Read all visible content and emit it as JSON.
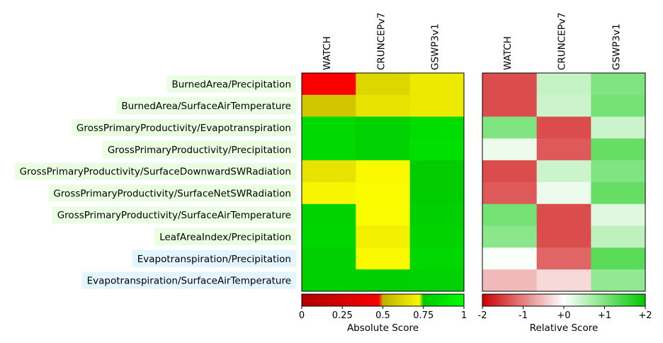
{
  "chart_data": [
    {
      "type": "heatmap",
      "title": "",
      "columns": [
        "WATCH",
        "CRUNCEPv7",
        "GSWP3v1"
      ],
      "rows": [
        "BurnedArea/Precipitation",
        "BurnedArea/SurfaceAirTemperature",
        "GrossPrimaryProductivity/Evapotranspiration",
        "GrossPrimaryProductivity/Precipitation",
        "GrossPrimaryProductivity/SurfaceDownwardSWRadiation",
        "GrossPrimaryProductivity/SurfaceNetSWRadiation",
        "GrossPrimaryProductivity/SurfaceAirTemperature",
        "LeafAreaIndex/Precipitation",
        "Evapotranspiration/Precipitation",
        "Evapotranspiration/SurfaceAirTemperature"
      ],
      "row_label_colors": [
        "#eaffe2",
        "#eaffe2",
        "#eaffe2",
        "#eaffe2",
        "#eaffe2",
        "#eaffe2",
        "#eaffe2",
        "#eaffe2",
        "#e3f5ff",
        "#e3f5ff"
      ],
      "values": [
        [
          0.48,
          0.62,
          0.68
        ],
        [
          0.57,
          0.66,
          0.68
        ],
        [
          0.83,
          0.79,
          0.84
        ],
        [
          0.83,
          0.79,
          0.86
        ],
        [
          0.66,
          0.73,
          0.77
        ],
        [
          0.72,
          0.74,
          0.77
        ],
        [
          0.8,
          0.74,
          0.78
        ],
        [
          0.81,
          0.7,
          0.8
        ],
        [
          0.78,
          0.73,
          0.82
        ],
        [
          0.78,
          0.78,
          0.79
        ]
      ],
      "colorbar": {
        "label": "Absolute Score",
        "range": [
          0,
          1
        ],
        "ticks": [
          "0",
          "0.25",
          "0.5",
          "0.75",
          "1"
        ],
        "tick_values": [
          0,
          0.25,
          0.5,
          0.75,
          1
        ],
        "colors": [
          "#b00000",
          "#ff0000",
          "#c0b000",
          "#ffff00",
          "#00c800",
          "#00ff00"
        ]
      }
    },
    {
      "type": "heatmap",
      "title": "",
      "columns": [
        "WATCH",
        "CRUNCEPv7",
        "GSWP3v1"
      ],
      "values": [
        [
          -1.4,
          0.45,
          1.0
        ],
        [
          -1.4,
          0.4,
          1.1
        ],
        [
          1.0,
          -1.4,
          0.4
        ],
        [
          0.15,
          -1.3,
          1.2
        ],
        [
          -1.4,
          0.4,
          1.0
        ],
        [
          -1.3,
          0.15,
          1.2
        ],
        [
          1.1,
          -1.4,
          0.25
        ],
        [
          0.9,
          -1.4,
          0.5
        ],
        [
          0.05,
          -1.2,
          1.3
        ],
        [
          -0.55,
          -0.3,
          0.85
        ]
      ],
      "colorbar": {
        "label": "Relative Score",
        "range": [
          -2,
          2
        ],
        "ticks": [
          "-2",
          "-1",
          "+0",
          "+1",
          "+2"
        ],
        "tick_values": [
          -2,
          -1,
          0,
          1,
          2
        ],
        "colors": [
          "#cc0000",
          "#ffffff",
          "#00c800"
        ]
      }
    }
  ]
}
